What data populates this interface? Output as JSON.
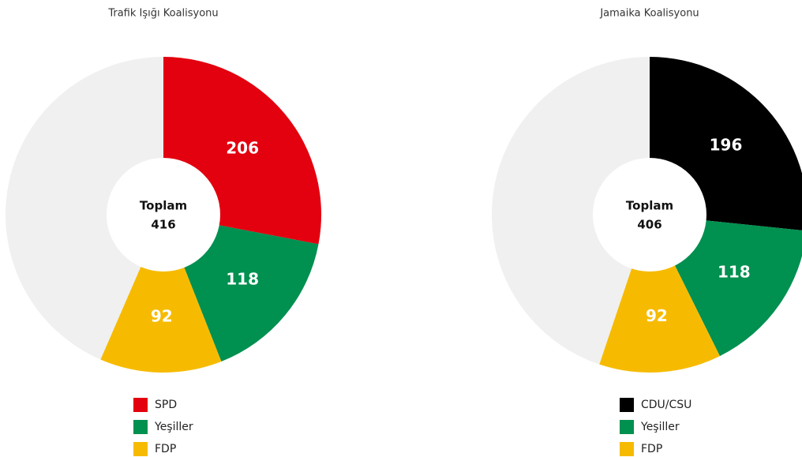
{
  "chart_data": [
    {
      "type": "pie",
      "title": "Trafik Işığı Koalisyonu",
      "categories": [
        "SPD",
        "Yeşiller",
        "FDP",
        null
      ],
      "values": [
        206,
        118,
        92,
        320
      ],
      "colors": [
        "#e3000f",
        "#009050",
        "#f6bb00",
        "#f0f0f0"
      ],
      "total_label": "Toplam",
      "total": 416
    },
    {
      "type": "pie",
      "title": "Jamaika Koalisyonu",
      "categories": [
        "CDU/CSU",
        "Yeşiller",
        "FDP",
        null
      ],
      "values": [
        196,
        118,
        92,
        330
      ],
      "colors": [
        "#000000",
        "#009050",
        "#f6bb00",
        "#f0f0f0"
      ],
      "total_label": "Toplam",
      "total": 406
    }
  ]
}
